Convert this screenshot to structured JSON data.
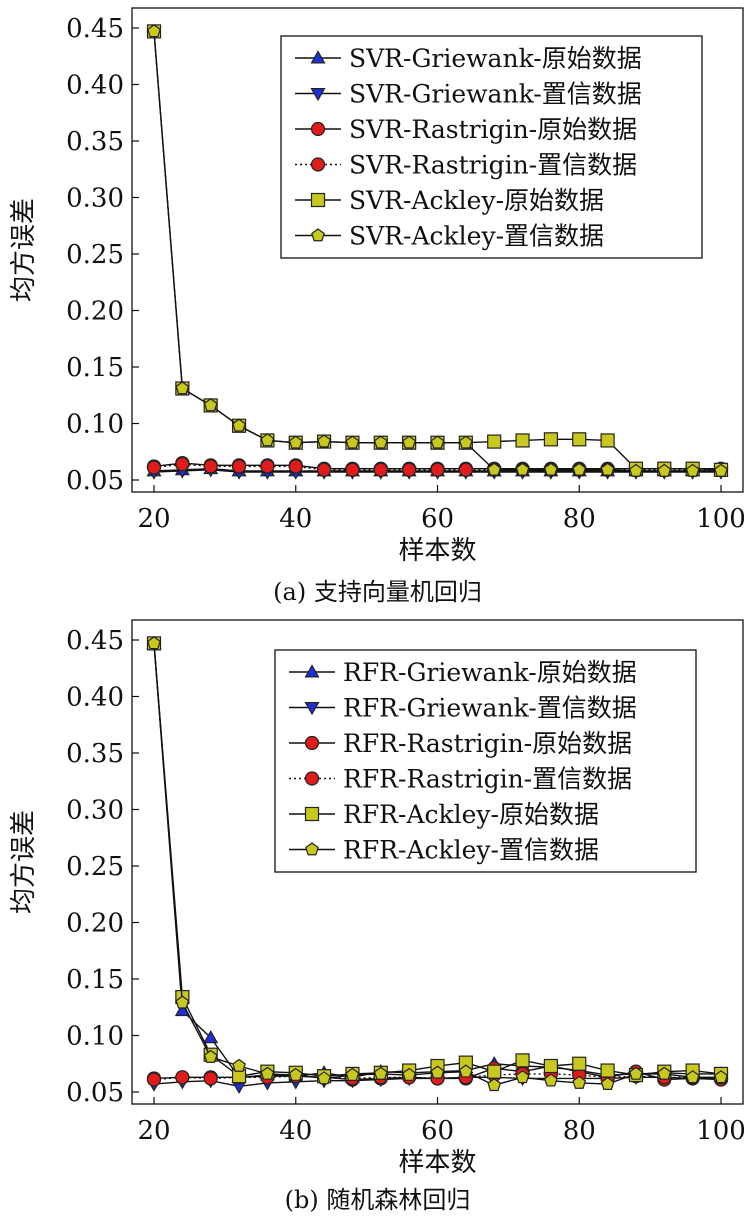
{
  "chart_data": [
    {
      "type": "line",
      "caption": "(a) 支持向量机回归",
      "xlabel": "样本数",
      "ylabel": "均方误差",
      "xlim": [
        20,
        100
      ],
      "ylim": [
        0.05,
        0.45
      ],
      "xticks": [
        20,
        40,
        60,
        80,
        100
      ],
      "yticks": [
        0.05,
        0.1,
        0.15,
        0.2,
        0.25,
        0.3,
        0.35,
        0.4,
        0.45
      ],
      "ytick_labels": [
        "0.05",
        "0.10",
        "0.15",
        "0.20",
        "0.25",
        "0.30",
        "0.35",
        "0.40",
        "0.45"
      ],
      "legend_position": "top-right",
      "grid": false,
      "x": [
        20,
        24,
        28,
        32,
        36,
        40,
        44,
        48,
        52,
        56,
        60,
        64,
        68,
        72,
        76,
        80,
        84,
        88,
        92,
        96,
        100
      ],
      "series": [
        {
          "name": "SVR-Griewank-原始数据",
          "marker": "triangle-up",
          "color": "#1f2fd6",
          "dash": false,
          "values": [
            0.058,
            0.059,
            0.06,
            0.058,
            0.058,
            0.058,
            0.058,
            0.058,
            0.058,
            0.058,
            0.058,
            0.058,
            0.058,
            0.058,
            0.058,
            0.058,
            0.058,
            0.058,
            0.058,
            0.058,
            0.058
          ]
        },
        {
          "name": "SVR-Griewank-置信数据",
          "marker": "triangle-down",
          "color": "#1f2fd6",
          "dash": false,
          "values": [
            0.057,
            0.058,
            0.059,
            0.057,
            0.057,
            0.057,
            0.057,
            0.057,
            0.057,
            0.057,
            0.057,
            0.057,
            0.057,
            0.057,
            0.057,
            0.057,
            0.057,
            0.057,
            0.057,
            0.057,
            0.057
          ]
        },
        {
          "name": "SVR-Rastrigin-原始数据",
          "marker": "circle",
          "color": "#e01b1b",
          "dash": false,
          "values": [
            0.062,
            0.065,
            0.063,
            0.063,
            0.063,
            0.063,
            0.06,
            0.06,
            0.06,
            0.06,
            0.06,
            0.06,
            0.06,
            0.06,
            0.06,
            0.06,
            0.06,
            0.06,
            0.06,
            0.06,
            0.06
          ]
        },
        {
          "name": "SVR-Rastrigin-置信数据",
          "marker": "circle",
          "color": "#e01b1b",
          "dash": true,
          "values": [
            0.061,
            0.064,
            0.062,
            0.062,
            0.062,
            0.062,
            0.059,
            0.059,
            0.059,
            0.059,
            0.059,
            0.059,
            0.059,
            0.059,
            0.059,
            0.059,
            0.059,
            0.059,
            0.059,
            0.059,
            0.059
          ]
        },
        {
          "name": "SVR-Ackley-原始数据",
          "marker": "square",
          "color": "#c8c81e",
          "dash": false,
          "values": [
            0.447,
            0.131,
            0.116,
            0.098,
            0.085,
            0.083,
            0.084,
            0.083,
            0.083,
            0.083,
            0.083,
            0.083,
            0.084,
            0.085,
            0.086,
            0.086,
            0.085,
            0.06,
            0.06,
            0.06,
            0.059
          ]
        },
        {
          "name": "SVR-Ackley-置信数据",
          "marker": "pentagon",
          "color": "#c8c81e",
          "dash": false,
          "values": [
            0.447,
            0.131,
            0.116,
            0.098,
            0.085,
            0.083,
            0.084,
            0.083,
            0.083,
            0.083,
            0.083,
            0.083,
            0.059,
            0.059,
            0.059,
            0.059,
            0.059,
            0.058,
            0.058,
            0.058,
            0.058
          ]
        }
      ]
    },
    {
      "type": "line",
      "caption": "(b) 随机森林回归",
      "xlabel": "样本数",
      "ylabel": "均方误差",
      "xlim": [
        20,
        100
      ],
      "ylim": [
        0.05,
        0.45
      ],
      "xticks": [
        20,
        40,
        60,
        80,
        100
      ],
      "yticks": [
        0.05,
        0.1,
        0.15,
        0.2,
        0.25,
        0.3,
        0.35,
        0.4,
        0.45
      ],
      "ytick_labels": [
        "0.05",
        "0.10",
        "0.15",
        "0.20",
        "0.25",
        "0.30",
        "0.35",
        "0.40",
        "0.45"
      ],
      "legend_position": "top-right",
      "grid": false,
      "x": [
        20,
        24,
        28,
        32,
        36,
        40,
        44,
        48,
        52,
        56,
        60,
        64,
        68,
        72,
        76,
        80,
        84,
        88,
        92,
        96,
        100
      ],
      "series": [
        {
          "name": "RFR-Griewank-原始数据",
          "marker": "triangle-up",
          "color": "#1f2fd6",
          "dash": false,
          "values": [
            0.447,
            0.122,
            0.098,
            0.063,
            0.065,
            0.064,
            0.067,
            0.063,
            0.068,
            0.067,
            0.068,
            0.069,
            0.075,
            0.073,
            0.072,
            0.069,
            0.065,
            0.066,
            0.067,
            0.066,
            0.066
          ]
        },
        {
          "name": "RFR-Griewank-置信数据",
          "marker": "triangle-down",
          "color": "#1f2fd6",
          "dash": false,
          "values": [
            0.057,
            0.059,
            0.06,
            0.055,
            0.058,
            0.059,
            0.06,
            0.06,
            0.061,
            0.062,
            0.062,
            0.063,
            0.063,
            0.062,
            0.062,
            0.062,
            0.062,
            0.063,
            0.063,
            0.062,
            0.062
          ]
        },
        {
          "name": "RFR-Rastrigin-原始数据",
          "marker": "circle",
          "color": "#e01b1b",
          "dash": false,
          "values": [
            0.062,
            0.063,
            0.063,
            0.063,
            0.064,
            0.064,
            0.063,
            0.061,
            0.062,
            0.063,
            0.062,
            0.062,
            0.071,
            0.068,
            0.073,
            0.068,
            0.063,
            0.068,
            0.061,
            0.062,
            0.061
          ]
        },
        {
          "name": "RFR-Rastrigin-置信数据",
          "marker": "circle",
          "color": "#e01b1b",
          "dash": true,
          "values": [
            0.061,
            0.063,
            0.062,
            0.063,
            0.063,
            0.064,
            0.063,
            0.062,
            0.063,
            0.063,
            0.062,
            0.063,
            0.065,
            0.066,
            0.066,
            0.065,
            0.063,
            0.064,
            0.063,
            0.063,
            0.063
          ]
        },
        {
          "name": "RFR-Ackley-原始数据",
          "marker": "square",
          "color": "#c8c81e",
          "dash": false,
          "values": [
            0.447,
            0.134,
            0.083,
            0.064,
            0.068,
            0.067,
            0.064,
            0.066,
            0.067,
            0.069,
            0.073,
            0.076,
            0.068,
            0.078,
            0.073,
            0.075,
            0.069,
            0.065,
            0.068,
            0.069,
            0.066
          ]
        },
        {
          "name": "RFR-Ackley-置信数据",
          "marker": "pentagon",
          "color": "#c8c81e",
          "dash": false,
          "values": [
            0.447,
            0.129,
            0.081,
            0.073,
            0.066,
            0.065,
            0.062,
            0.065,
            0.066,
            0.065,
            0.067,
            0.068,
            0.056,
            0.063,
            0.06,
            0.058,
            0.057,
            0.066,
            0.066,
            0.063,
            0.063
          ]
        }
      ]
    }
  ]
}
